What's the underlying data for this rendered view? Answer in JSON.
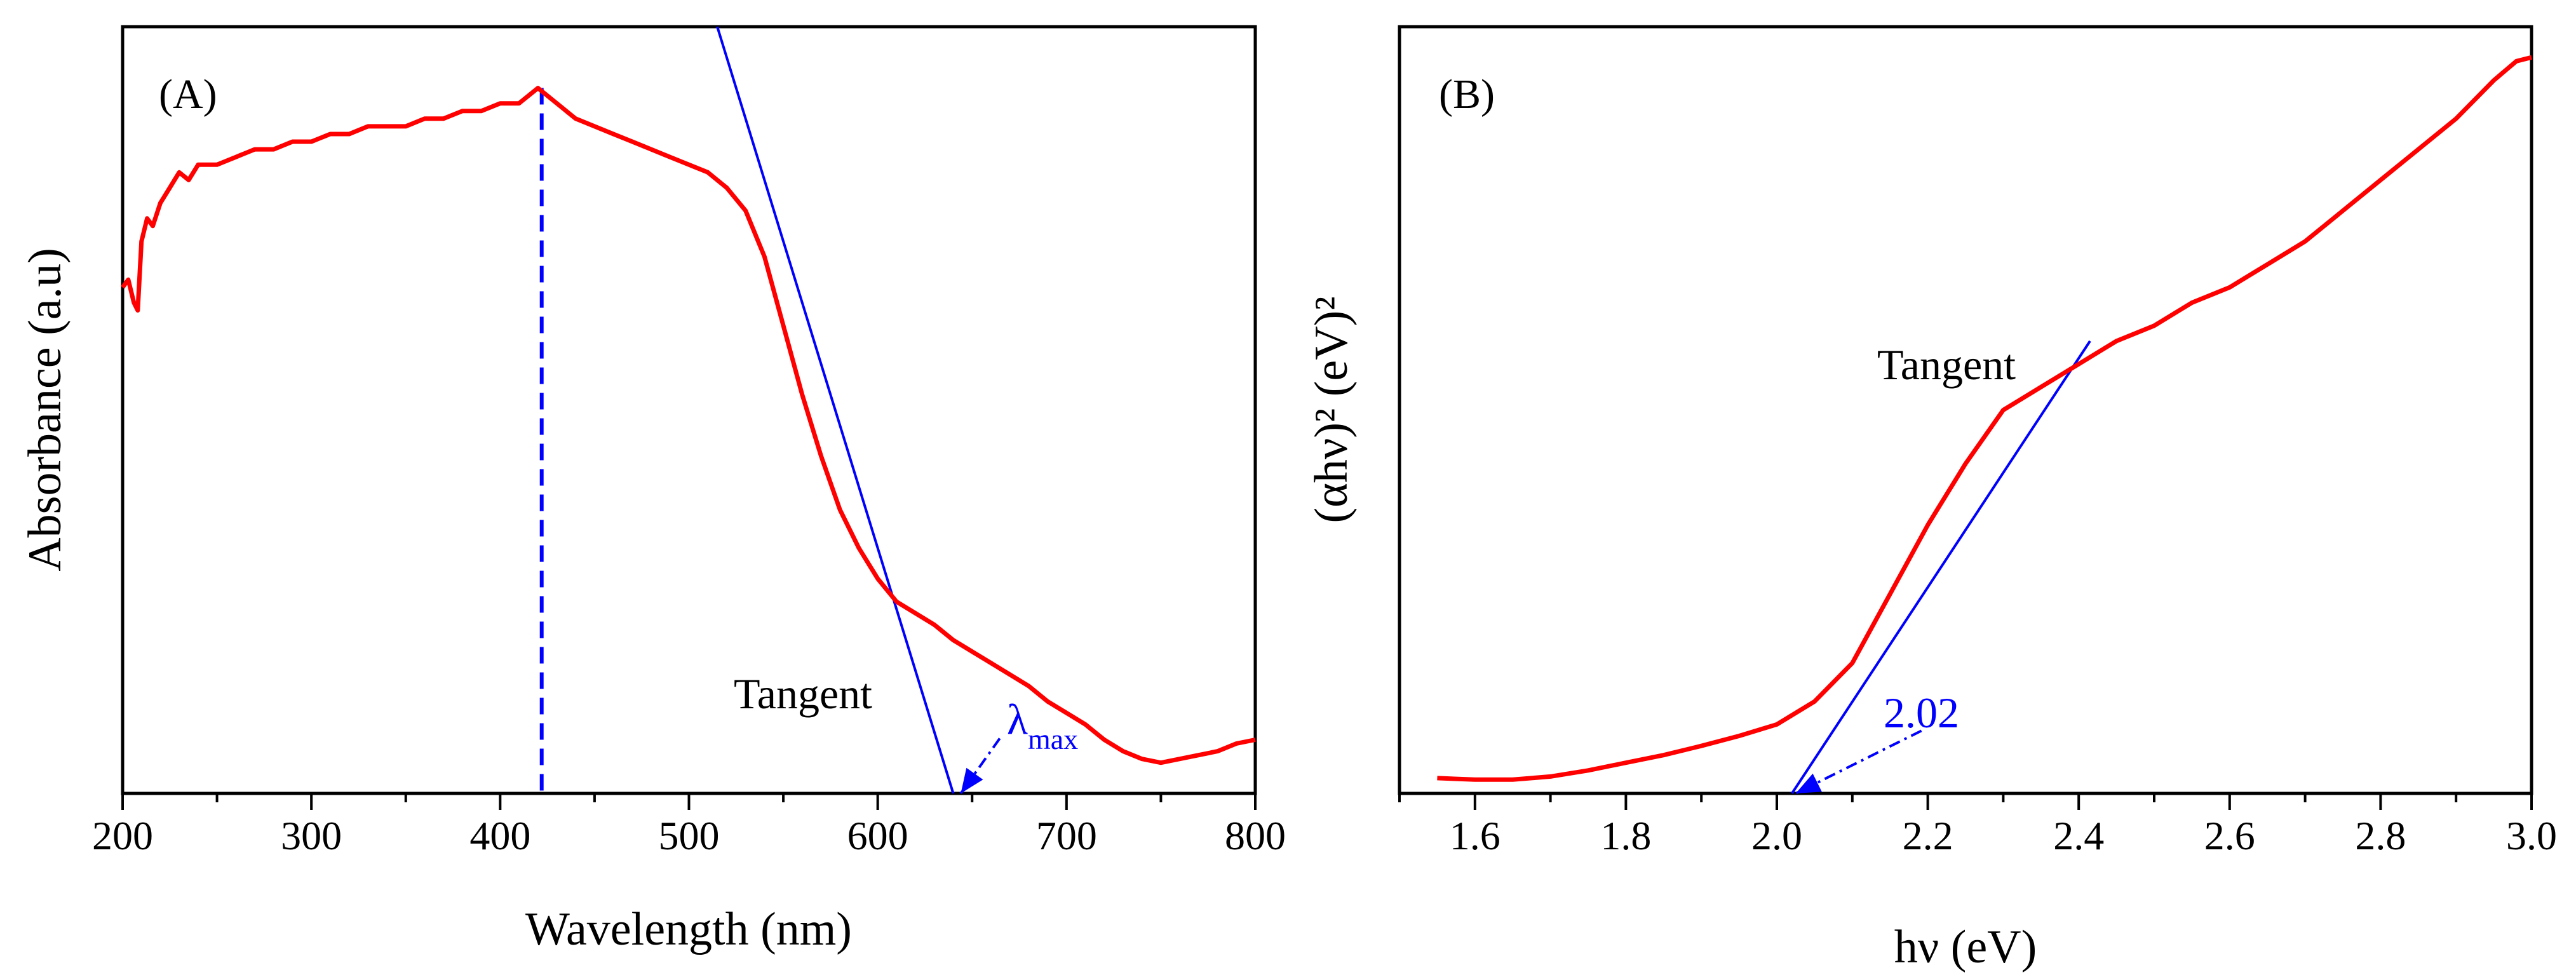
{
  "chart_data": [
    {
      "type": "line",
      "panel_label": "(A)",
      "xlabel": "Wavelength (nm)",
      "ylabel": "Absorbance (a.u)",
      "xlim": [
        200,
        800
      ],
      "ylim": [
        0,
        1
      ],
      "x_ticks": [
        200,
        300,
        400,
        500,
        600,
        700,
        800
      ],
      "y_ticks_shown": false,
      "grid": false,
      "series": [
        {
          "color": "#ff0000",
          "x": [
            200,
            203,
            206,
            208,
            210,
            213,
            216,
            220,
            225,
            230,
            235,
            240,
            250,
            260,
            270,
            280,
            290,
            300,
            310,
            320,
            330,
            340,
            350,
            360,
            370,
            380,
            390,
            400,
            410,
            420,
            430,
            440,
            450,
            460,
            470,
            480,
            490,
            500,
            510,
            520,
            530,
            540,
            550,
            560,
            570,
            580,
            590,
            600,
            610,
            620,
            630,
            640,
            650,
            660,
            670,
            680,
            690,
            700,
            710,
            720,
            730,
            740,
            750,
            760,
            770,
            780,
            790,
            800
          ],
          "y": [
            0.66,
            0.67,
            0.64,
            0.63,
            0.72,
            0.75,
            0.74,
            0.77,
            0.79,
            0.81,
            0.8,
            0.82,
            0.82,
            0.83,
            0.84,
            0.84,
            0.85,
            0.85,
            0.86,
            0.86,
            0.87,
            0.87,
            0.87,
            0.88,
            0.88,
            0.89,
            0.89,
            0.9,
            0.9,
            0.92,
            0.9,
            0.88,
            0.87,
            0.86,
            0.85,
            0.84,
            0.83,
            0.82,
            0.81,
            0.79,
            0.76,
            0.7,
            0.61,
            0.52,
            0.44,
            0.37,
            0.32,
            0.28,
            0.25,
            0.235,
            0.22,
            0.2,
            0.185,
            0.17,
            0.155,
            0.14,
            0.12,
            0.105,
            0.09,
            0.07,
            0.055,
            0.045,
            0.04,
            0.045,
            0.05,
            0.055,
            0.065,
            0.07
          ]
        }
      ],
      "peak_line": {
        "x": 422,
        "y_top": 0.92,
        "color": "#0000ff",
        "style": "dashed"
      },
      "tangent": {
        "x1": 515,
        "y1": 1.0,
        "x2": 640,
        "y2": 0.0,
        "color": "#0000ff"
      },
      "annotations": [
        {
          "text": "Tangent",
          "x": 455,
          "y": 0.13
        },
        {
          "text": "λ",
          "sub": "max",
          "x": 668,
          "y": 0.08,
          "color": "#0000ff",
          "arrow_to": [
            644,
            0.0
          ]
        }
      ]
    },
    {
      "type": "line",
      "panel_label": "(B)",
      "xlabel": "hν (eV)",
      "ylabel": "(αhν)² (eV)²",
      "xlim": [
        1.5,
        3.0
      ],
      "ylim": [
        0,
        1
      ],
      "x_ticks": [
        "1.6",
        "1.8",
        "2.0",
        "2.2",
        "2.4",
        "2.6",
        "2.8",
        "3.0"
      ],
      "y_ticks_shown": false,
      "grid": false,
      "series": [
        {
          "color": "#ff0000",
          "x": [
            1.55,
            1.6,
            1.65,
            1.7,
            1.75,
            1.8,
            1.85,
            1.9,
            1.95,
            2.0,
            2.05,
            2.1,
            2.15,
            2.2,
            2.25,
            2.3,
            2.35,
            2.4,
            2.45,
            2.5,
            2.55,
            2.6,
            2.65,
            2.7,
            2.75,
            2.8,
            2.85,
            2.9,
            2.95,
            2.98,
            3.0
          ],
          "y": [
            0.02,
            0.018,
            0.018,
            0.022,
            0.03,
            0.04,
            0.05,
            0.062,
            0.075,
            0.09,
            0.12,
            0.17,
            0.26,
            0.35,
            0.43,
            0.5,
            0.53,
            0.56,
            0.59,
            0.61,
            0.64,
            0.66,
            0.69,
            0.72,
            0.76,
            0.8,
            0.84,
            0.88,
            0.93,
            0.955,
            0.96
          ]
        }
      ],
      "tangent": {
        "x1": 2.02,
        "y1": 0.0,
        "x2": 2.415,
        "y2": 0.59,
        "color": "#0000ff"
      },
      "annotations": [
        {
          "text": "Tangent",
          "x": 2.19,
          "y": 0.545
        },
        {
          "text": "2.02",
          "x": 2.2,
          "y": 0.09,
          "color": "#0000ff",
          "arrow_to": [
            2.025,
            0.0
          ]
        }
      ]
    }
  ]
}
